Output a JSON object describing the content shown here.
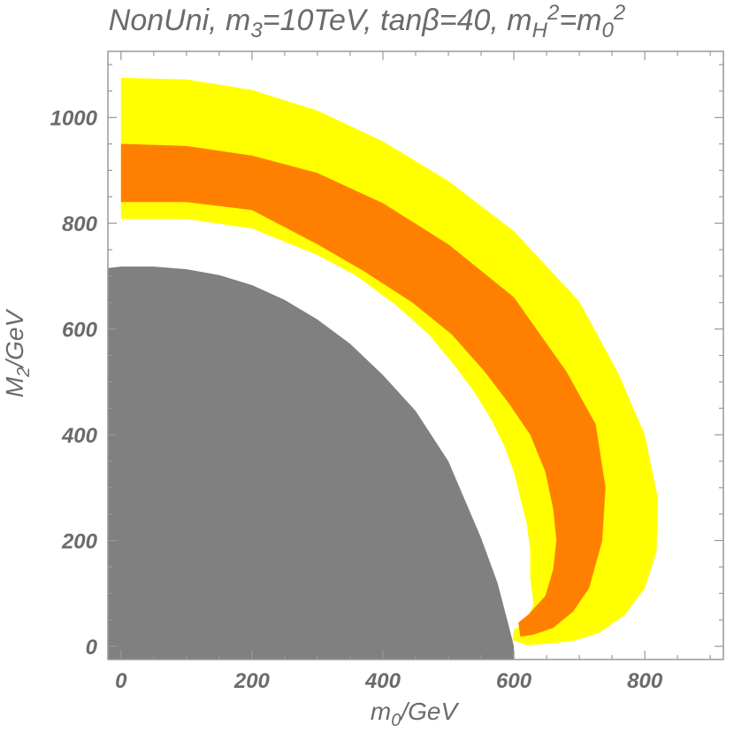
{
  "chart_data": {
    "type": "area",
    "title": {
      "prefix": "NonUni, m",
      "m3_sub": "3",
      "m3_rest": "=10TeV, tan",
      "beta": "β",
      "tan_rest": "=40, m",
      "mH_sub": "H",
      "mH_sup": "2",
      "eq": "=m",
      "m0_sub": "0",
      "m0_sup": "2"
    },
    "xlabel": {
      "main": "m",
      "sub": "0",
      "rest": "/GeV"
    },
    "ylabel": {
      "main": "M",
      "sub": "2",
      "rest": "/GeV"
    },
    "xlim": [
      -20,
      920
    ],
    "ylim": [
      -25,
      1125
    ],
    "x_ticks": [
      0,
      200,
      400,
      600,
      800
    ],
    "y_ticks": [
      0,
      200,
      400,
      600,
      800,
      1000
    ],
    "x_tick_labels": [
      "0",
      "200",
      "400",
      "600",
      "800"
    ],
    "y_tick_labels": [
      "0",
      "200",
      "400",
      "600",
      "800",
      "1000"
    ],
    "colors": {
      "excluded": "#808080",
      "outer_band": "#ffff00",
      "inner_band": "#ff8000",
      "frame": "#999999"
    },
    "regions": [
      {
        "role": "excluded",
        "polygon": [
          [
            -20,
            715
          ],
          [
            0,
            718
          ],
          [
            50,
            718
          ],
          [
            100,
            713
          ],
          [
            150,
            702
          ],
          [
            200,
            683
          ],
          [
            250,
            655
          ],
          [
            300,
            618
          ],
          [
            350,
            572
          ],
          [
            400,
            513
          ],
          [
            450,
            445
          ],
          [
            500,
            350
          ],
          [
            550,
            205
          ],
          [
            575,
            120
          ],
          [
            595,
            25
          ],
          [
            600,
            0
          ],
          [
            600,
            -25
          ],
          [
            -20,
            -25
          ]
        ]
      },
      {
        "role": "outer_band",
        "polygon": [
          [
            0,
            1075
          ],
          [
            100,
            1072
          ],
          [
            200,
            1052
          ],
          [
            300,
            1013
          ],
          [
            400,
            955
          ],
          [
            500,
            880
          ],
          [
            600,
            785
          ],
          [
            700,
            652
          ],
          [
            760,
            515
          ],
          [
            800,
            400
          ],
          [
            820,
            280
          ],
          [
            818,
            180
          ],
          [
            800,
            110
          ],
          [
            770,
            60
          ],
          [
            730,
            25
          ],
          [
            690,
            10
          ],
          [
            650,
            5
          ],
          [
            620,
            2
          ],
          [
            598,
            12
          ],
          [
            600,
            30
          ],
          [
            610,
            40
          ],
          [
            620,
            50
          ],
          [
            630,
            80
          ],
          [
            625,
            130
          ],
          [
            625,
            180
          ],
          [
            620,
            230
          ],
          [
            610,
            280
          ],
          [
            600,
            330
          ],
          [
            585,
            380
          ],
          [
            565,
            430
          ],
          [
            540,
            480
          ],
          [
            510,
            530
          ],
          [
            470,
            590
          ],
          [
            420,
            645
          ],
          [
            360,
            700
          ],
          [
            300,
            740
          ],
          [
            200,
            790
          ],
          [
            100,
            808
          ],
          [
            0,
            808
          ]
        ]
      },
      {
        "role": "inner_band",
        "polygon": [
          [
            0,
            950
          ],
          [
            100,
            946
          ],
          [
            200,
            928
          ],
          [
            300,
            895
          ],
          [
            400,
            838
          ],
          [
            500,
            760
          ],
          [
            600,
            660
          ],
          [
            680,
            520
          ],
          [
            725,
            420
          ],
          [
            740,
            300
          ],
          [
            735,
            200
          ],
          [
            715,
            110
          ],
          [
            690,
            65
          ],
          [
            660,
            35
          ],
          [
            630,
            22
          ],
          [
            610,
            18
          ],
          [
            607,
            45
          ],
          [
            622,
            60
          ],
          [
            648,
            95
          ],
          [
            660,
            145
          ],
          [
            665,
            200
          ],
          [
            660,
            260
          ],
          [
            648,
            330
          ],
          [
            625,
            400
          ],
          [
            592,
            460
          ],
          [
            555,
            520
          ],
          [
            505,
            590
          ],
          [
            445,
            650
          ],
          [
            370,
            710
          ],
          [
            300,
            760
          ],
          [
            200,
            825
          ],
          [
            100,
            840
          ],
          [
            0,
            840
          ]
        ]
      }
    ]
  }
}
